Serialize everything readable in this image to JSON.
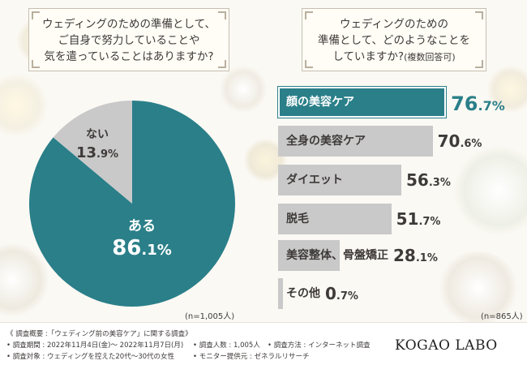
{
  "questions": {
    "left": [
      "ウェディングのための準備として、",
      "ご自身で努力していることや",
      "気を遣っていることはありますか?"
    ],
    "right_lines": [
      "ウェディングのための",
      "準備として、どのようなことを",
      "していますか?"
    ],
    "right_suffix": "(複数回答可)"
  },
  "sample_left": "(n=1,005人)",
  "sample_right": "(n=865人)",
  "chart_data": [
    {
      "type": "pie",
      "slices": [
        {
          "name": "ある",
          "value": 86.1,
          "big": "86",
          "small": ".1%",
          "color": "#2a7f89"
        },
        {
          "name": "ない",
          "value": 13.9,
          "big": "13",
          "small": ".9%",
          "color": "#c9c9c9"
        }
      ]
    },
    {
      "type": "bar",
      "orientation": "horizontal",
      "xlim": [
        0,
        100
      ],
      "highlight_color": "#2a7f89",
      "bar_color": "#c9c9c9",
      "bars": [
        {
          "label": "顔の美容ケア",
          "value": 76.7,
          "big": "76",
          "small": ".7%"
        },
        {
          "label": "全身の美容ケア",
          "value": 70.6,
          "big": "70",
          "small": ".6%"
        },
        {
          "label": "ダイエット",
          "value": 56.3,
          "big": "56",
          "small": ".3%"
        },
        {
          "label": "脱毛",
          "value": 51.7,
          "big": "51",
          "small": ".7%"
        },
        {
          "label": "美容整体、骨盤矯正",
          "value": 28.1,
          "big": "28",
          "small": ".1%"
        },
        {
          "label": "その他",
          "value": 0.7,
          "big": "0",
          "small": ".7%"
        }
      ]
    }
  ],
  "footer": {
    "title": "《 調査概要 :「ウェディング前の美容ケア」に関する調査》",
    "period": "• 調査期間 : 2022年11月4日(金)～ 2022年11月7日(月)",
    "count": "• 調査人数 : 1,005人",
    "method": "• 調査方法 : インターネット調査",
    "target": "• 調査対象 : ウェディングを控えた20代～30代の女性",
    "provider": "• モニター提供元 : ゼネラルリサーチ",
    "brand": "KOGAO LABO"
  }
}
